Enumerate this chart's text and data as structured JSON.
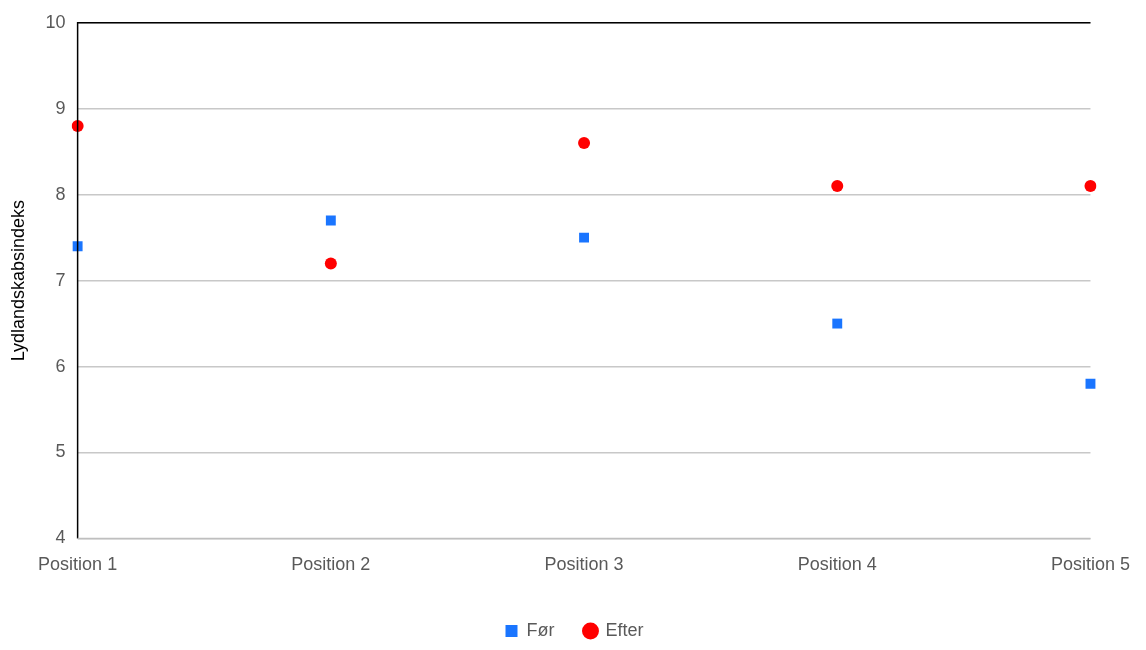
{
  "chart_data": {
    "type": "scatter",
    "ylabel": "Lydlandskabsindeks",
    "categories": [
      "Position 1",
      "Position 2",
      "Position 3",
      "Position 4",
      "Position 5"
    ],
    "series": [
      {
        "name": "Før",
        "color": "#1a75ff",
        "marker": "square",
        "values": [
          7.4,
          7.7,
          7.5,
          6.5,
          5.8
        ]
      },
      {
        "name": "Efter",
        "color": "#ff0000",
        "marker": "circle",
        "values": [
          8.8,
          7.2,
          8.6,
          8.1,
          8.1
        ]
      }
    ],
    "ylim": [
      4,
      10
    ],
    "yticks": [
      4,
      5,
      6,
      7,
      8,
      9,
      10
    ],
    "grid": "y",
    "legend": "bottom"
  }
}
